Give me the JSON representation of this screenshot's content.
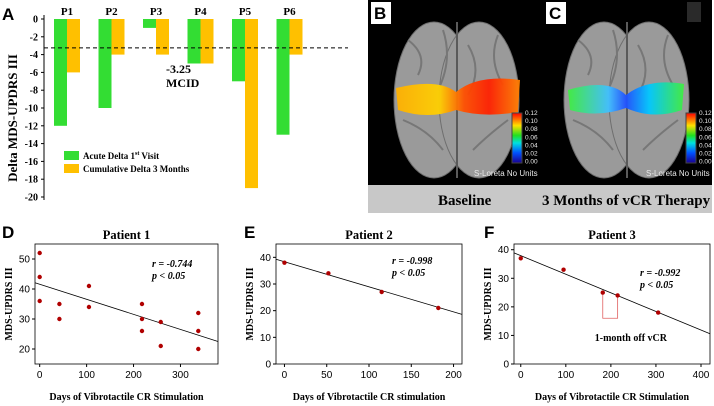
{
  "panel_letters": {
    "a": "A",
    "b": "B",
    "c": "C",
    "d": "D",
    "e": "E",
    "f": "F"
  },
  "brain": {
    "baseline_caption": "Baseline",
    "therapy_caption": "3 Months of vCR Therapy",
    "footnote": "S-Loreta  No Units",
    "colorbar_ticks": [
      "0.12",
      "0.10",
      "0.08",
      "0.06",
      "0.04",
      "0.02",
      "0.00"
    ],
    "colors": {
      "background": "#000000",
      "caption_bar": "#c8c8c8",
      "cortex": "#9a9a9a"
    }
  },
  "colors": {
    "acute": "#33dd33",
    "cumulative": "#ffc000",
    "point": "#b00000",
    "line": "#000000"
  },
  "chart_data": [
    {
      "type": "bar",
      "categories": [
        "P1",
        "P2",
        "P3",
        "P4",
        "P5",
        "P6"
      ],
      "series": [
        {
          "name": "Acute Delta 1st Visit",
          "legend_main": "Acute Delta 1",
          "legend_sup": "st",
          "legend_tail": " Visit",
          "values": [
            -12,
            -10,
            -1,
            -5,
            -7,
            -13
          ]
        },
        {
          "name": "Cumulative Delta 3 Months",
          "legend_main": "Cumulative Delta 3 Months",
          "legend_sup": "",
          "legend_tail": "",
          "values": [
            -6,
            -4,
            -4,
            -5,
            -19,
            -4
          ]
        }
      ],
      "ylabel": "Delta MDS-UPDRS III",
      "ylim": [
        -20,
        0
      ],
      "yticks": [
        0,
        -2,
        -4,
        -6,
        -8,
        -10,
        -12,
        -14,
        -16,
        -18,
        -20
      ],
      "reference_line": {
        "value": -3.25,
        "label_value": "-3.25",
        "label_name": "MCID"
      }
    },
    {
      "type": "scatter",
      "title": "Patient 1",
      "xlabel": "Days of Vibrotactile CR Stimulation",
      "ylabel": "MDS-UPDRS III",
      "xlim": [
        -10,
        380
      ],
      "ylim": [
        15,
        55
      ],
      "xticks": [
        0,
        100,
        200,
        300
      ],
      "yticks": [
        20,
        30,
        40,
        50
      ],
      "points": [
        [
          0,
          52
        ],
        [
          0,
          44
        ],
        [
          0,
          36
        ],
        [
          42,
          35
        ],
        [
          42,
          30
        ],
        [
          105,
          41
        ],
        [
          105,
          34
        ],
        [
          218,
          35
        ],
        [
          218,
          30
        ],
        [
          218,
          26
        ],
        [
          258,
          29
        ],
        [
          258,
          21
        ],
        [
          338,
          32
        ],
        [
          338,
          26
        ],
        [
          338,
          20
        ]
      ],
      "trend": {
        "x": [
          -10,
          380
        ],
        "y": [
          42.1,
          22.5
        ]
      },
      "stat_r": "r = -0.744",
      "stat_p": "p < 0.05"
    },
    {
      "type": "scatter",
      "title": "Patient 2",
      "xlabel": "Days of Vibrotactile CR stimulation",
      "ylabel": "MDS-UPDRS III",
      "xlim": [
        -10,
        210
      ],
      "ylim": [
        0,
        45
      ],
      "xticks": [
        0,
        50,
        100,
        150,
        200
      ],
      "yticks": [
        0,
        10,
        20,
        30,
        40
      ],
      "points": [
        [
          0,
          38
        ],
        [
          52,
          34
        ],
        [
          115,
          27
        ],
        [
          182,
          21
        ]
      ],
      "trend": {
        "x": [
          -10,
          210
        ],
        "y": [
          39.3,
          18.6
        ]
      },
      "stat_r": "r = -0.998",
      "stat_p": "p < 0.05"
    },
    {
      "type": "scatter",
      "title": "Patient 3",
      "xlabel": "Days of Vibrotactile CR Stimulation",
      "ylabel": "MDS-UPDRS III",
      "xlim": [
        -15,
        420
      ],
      "ylim": [
        0,
        42
      ],
      "xticks": [
        0,
        100,
        200,
        300,
        400
      ],
      "yticks": [
        0,
        10,
        20,
        30,
        40
      ],
      "points": [
        [
          0,
          37
        ],
        [
          95,
          33
        ],
        [
          182,
          25
        ],
        [
          215,
          24
        ],
        [
          305,
          18
        ]
      ],
      "trend": {
        "x": [
          -15,
          420
        ],
        "y": [
          38.9,
          10.6
        ]
      },
      "stat_r": "r = -0.992",
      "stat_p": "p < 0.05",
      "annotation": "1-month off vCR",
      "off_period": {
        "x": [
          182,
          215
        ]
      }
    }
  ]
}
